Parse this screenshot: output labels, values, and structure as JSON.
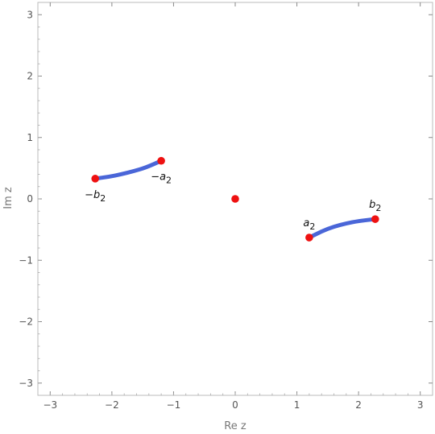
{
  "chart_data": {
    "type": "scatter",
    "xlabel": "Re z",
    "ylabel": "Im z",
    "xlim": [
      -3.2,
      3.2
    ],
    "ylim": [
      -3.2,
      3.2
    ],
    "grid": false,
    "x_ticks": [
      -3,
      -2,
      -1,
      0,
      1,
      2,
      3
    ],
    "y_ticks": [
      -3,
      -2,
      -1,
      0,
      1,
      2,
      3
    ],
    "x_tick_labels": [
      "−3",
      "−2",
      "−1",
      "0",
      "1",
      "2",
      "3"
    ],
    "y_tick_labels": [
      "−3",
      "−2",
      "−1",
      "0",
      "1",
      "2",
      "3"
    ],
    "colors": {
      "curve": "#4a66d8",
      "point": "#ee1111",
      "frame": "#bbbbbb"
    },
    "curves": [
      {
        "points": [
          [
            -2.27,
            0.33
          ],
          [
            -2.05,
            0.36
          ],
          [
            -1.85,
            0.4
          ],
          [
            -1.65,
            0.45
          ],
          [
            -1.45,
            0.51
          ],
          [
            -1.2,
            0.62
          ]
        ]
      },
      {
        "points": [
          [
            1.2,
            -0.63
          ],
          [
            1.4,
            -0.53
          ],
          [
            1.6,
            -0.45
          ],
          [
            1.8,
            -0.4
          ],
          [
            2.0,
            -0.36
          ],
          [
            2.27,
            -0.33
          ]
        ]
      }
    ],
    "points": [
      {
        "x": -2.27,
        "y": 0.33,
        "label": "−b",
        "sub": "2",
        "label_pos": "below"
      },
      {
        "x": -1.2,
        "y": 0.62,
        "label": "−a",
        "sub": "2",
        "label_pos": "below"
      },
      {
        "x": 0.0,
        "y": 0.0,
        "label": "",
        "sub": "",
        "label_pos": ""
      },
      {
        "x": 1.2,
        "y": -0.63,
        "label": "a",
        "sub": "2",
        "label_pos": "above"
      },
      {
        "x": 2.27,
        "y": -0.33,
        "label": "b",
        "sub": "2",
        "label_pos": "above"
      }
    ]
  }
}
